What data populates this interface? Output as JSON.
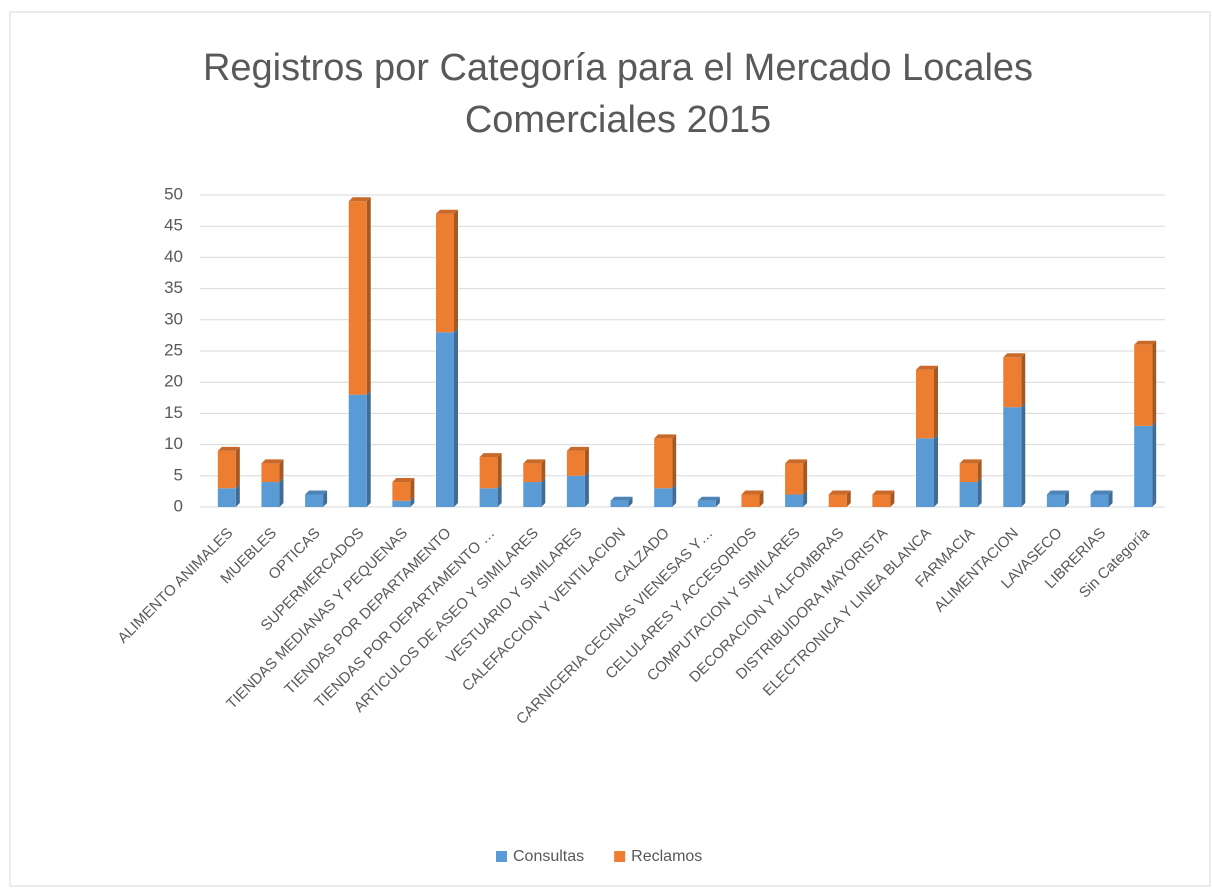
{
  "chart_data": {
    "type": "stacked_bar",
    "title": [
      "Registros por Categoría para el Mercado Locales",
      "Comerciales 2015"
    ],
    "categories": [
      "ALIMENTO ANIMALES",
      "MUEBLES",
      "OPTICAS",
      "SUPERMERCADOS",
      "TIENDAS MEDIANAS Y PEQUENAS",
      "TIENDAS POR DEPARTAMENTO",
      "TIENDAS POR DEPARTAMENTO …",
      "ARTICULOS DE ASEO Y SIMILARES",
      "VESTUARIO Y SIMILARES",
      "CALEFACCION Y VENTILACION",
      "CALZADO",
      "CARNICERIA CECINAS VIENESAS Y…",
      "CELULARES Y ACCESORIOS",
      "COMPUTACION Y SIMILARES",
      "DECORACION Y ALFOMBRAS",
      "DISTRIBUIDORA MAYORISTA",
      "ELECTRONICA Y LINEA BLANCA",
      "FARMACIA",
      "ALIMENTACION",
      "LAVASECO",
      "LIBRERIAS",
      "Sin Categoría"
    ],
    "series": [
      {
        "name": "Consultas",
        "color": "#5b9bd5",
        "values": [
          3,
          4,
          2,
          18,
          1,
          28,
          3,
          4,
          5,
          1,
          3,
          1,
          0,
          2,
          0,
          0,
          11,
          4,
          16,
          2,
          2,
          13
        ]
      },
      {
        "name": "Reclamos",
        "color": "#ed7d31",
        "values": [
          6,
          3,
          0,
          31,
          3,
          19,
          5,
          3,
          4,
          0,
          8,
          0,
          2,
          5,
          2,
          2,
          11,
          3,
          8,
          0,
          0,
          13
        ]
      }
    ],
    "ylim": [
      0,
      50
    ],
    "yticks": [
      0,
      5,
      10,
      15,
      20,
      25,
      30,
      35,
      40,
      45,
      50
    ],
    "grid": true,
    "legend": "bottom"
  }
}
